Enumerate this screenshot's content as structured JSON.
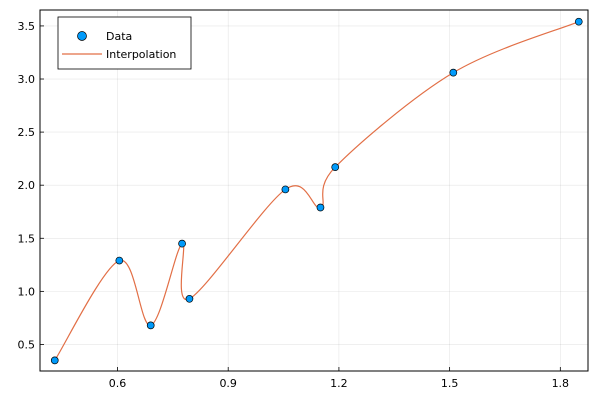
{
  "chart_data": {
    "type": "scatter",
    "title": "",
    "xlabel": "",
    "ylabel": "",
    "xlim": [
      0.39,
      1.875
    ],
    "ylim": [
      0.25,
      3.65
    ],
    "xticks": [
      0.6,
      0.9,
      1.2,
      1.5,
      1.8
    ],
    "yticks": [
      0.5,
      1.0,
      1.5,
      2.0,
      2.5,
      3.0,
      3.5
    ],
    "xtick_labels": [
      "0.6",
      "0.9",
      "1.2",
      "1.5",
      "1.8"
    ],
    "ytick_labels": [
      "0.5",
      "1.0",
      "1.5",
      "2.0",
      "2.5",
      "3.0",
      "3.5"
    ],
    "grid": true,
    "legend_position": "top-left",
    "series": [
      {
        "name": "Data",
        "kind": "markers",
        "color": "#009AFA",
        "x": [
          0.43,
          0.605,
          0.69,
          0.775,
          0.795,
          1.055,
          1.15,
          1.19,
          1.51,
          1.85
        ],
        "y": [
          0.35,
          1.29,
          0.68,
          1.45,
          0.93,
          1.96,
          1.79,
          2.17,
          3.06,
          3.54
        ]
      },
      {
        "name": "Interpolation",
        "kind": "line",
        "color": "#E26F46",
        "x": [
          0.43,
          0.605,
          0.69,
          0.775,
          0.795,
          1.055,
          1.15,
          1.19,
          1.51,
          1.85
        ],
        "y": [
          0.35,
          1.29,
          0.68,
          1.45,
          0.93,
          1.96,
          1.79,
          2.17,
          3.06,
          3.54
        ]
      }
    ]
  }
}
